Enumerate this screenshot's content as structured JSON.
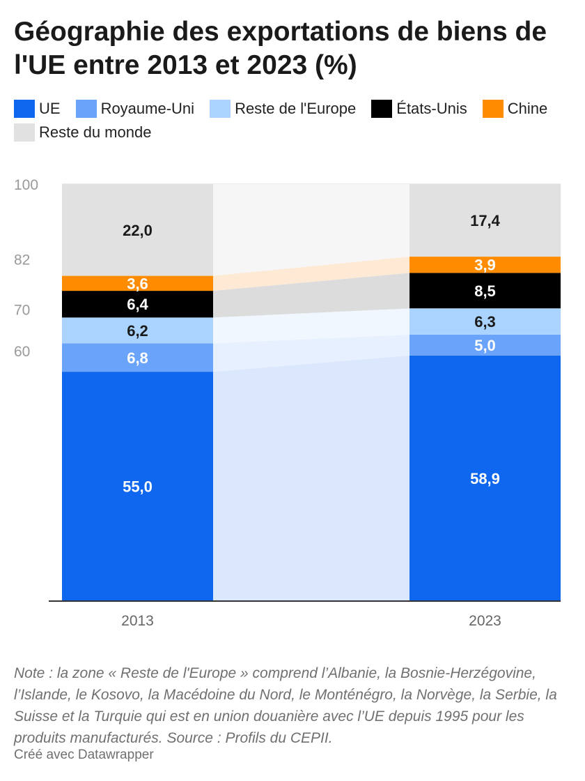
{
  "title": "Géographie des exportations de biens de l'UE entre 2013 et 2023 (%)",
  "legend": [
    {
      "label": "UE",
      "color": "#0f66ef"
    },
    {
      "label": "Royaume-Uni",
      "color": "#6aa3fa"
    },
    {
      "label": "Reste de l'Europe",
      "color": "#aad4ff"
    },
    {
      "label": "États-Unis",
      "color": "#000000"
    },
    {
      "label": "Chine",
      "color": "#ff8c00"
    },
    {
      "label": "Reste du monde",
      "color": "#e1e1e1"
    }
  ],
  "chart_data": {
    "type": "bar",
    "stacked": true,
    "categories": [
      "2013",
      "2023"
    ],
    "series": [
      {
        "name": "UE",
        "values": [
          55.0,
          58.9
        ],
        "labels": [
          "55,0",
          "58,9"
        ],
        "color": "#0f66ef",
        "flow_color": "#dae7fc",
        "label_color": "#ffffff"
      },
      {
        "name": "Royaume-Uni",
        "values": [
          6.8,
          5.0
        ],
        "labels": [
          "6,8",
          "5,0"
        ],
        "color": "#6aa3fa",
        "flow_color": "#e7f0fe",
        "label_color": "#ffffff"
      },
      {
        "name": "Reste de l'Europe",
        "values": [
          6.2,
          6.3
        ],
        "labels": [
          "6,2",
          "6,3"
        ],
        "color": "#aad4ff",
        "flow_color": "#f0f7ff",
        "label_color": "#1a1a1a"
      },
      {
        "name": "États-Unis",
        "values": [
          6.4,
          8.5
        ],
        "labels": [
          "6,4",
          "8,5"
        ],
        "color": "#000000",
        "flow_color": "#dcdcdc",
        "label_color": "#ffffff"
      },
      {
        "name": "Chine",
        "values": [
          3.6,
          3.9
        ],
        "labels": [
          "3,6",
          "3,9"
        ],
        "color": "#ff8c00",
        "flow_color": "#fde9d4",
        "label_color": "#ffffff"
      },
      {
        "name": "Reste du monde",
        "values": [
          22.0,
          17.4
        ],
        "labels": [
          "22,0",
          "17,4"
        ],
        "color": "#e1e1e1",
        "flow_color": "#f6f6f6",
        "label_color": "#1a1a1a"
      }
    ],
    "y_ticks": [
      {
        "value": 100,
        "label": "100"
      },
      {
        "value": 82,
        "label": "82"
      },
      {
        "value": 70,
        "label": "70"
      },
      {
        "value": 60,
        "label": "60"
      }
    ],
    "ylim": [
      0,
      100
    ],
    "grid": true
  },
  "note": "Note : la zone « Reste de l'Europe » comprend l’Albanie, la Bosnie-Herzégovine, l’Islande, le Kosovo, la Macédoine du Nord, le Monténégro, la Norvège, la Serbie, la Suisse et la Turquie qui est en union douanière avec l’UE depuis 1995 pour les produits manufacturés. Source : Profils du CEPII.",
  "credit": "Créé avec Datawrapper"
}
